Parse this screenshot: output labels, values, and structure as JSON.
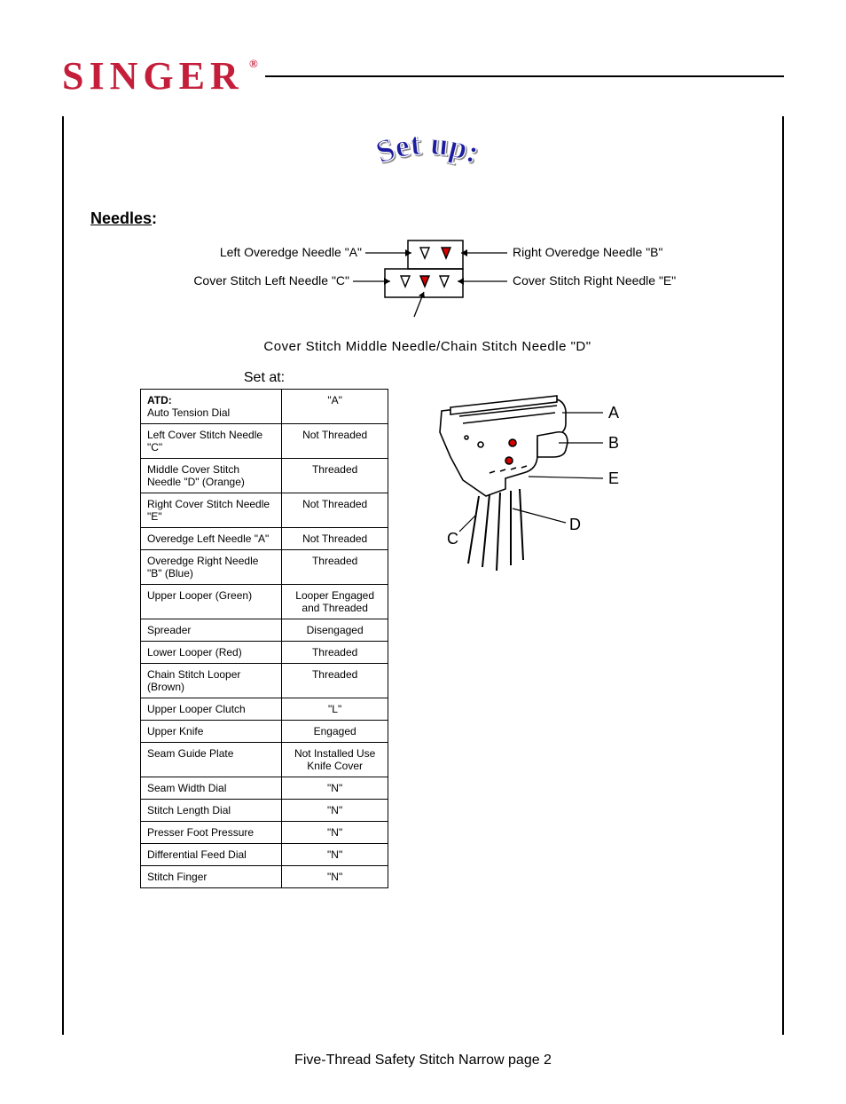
{
  "brand": {
    "name": "SINGER",
    "reg": "®",
    "color": "#c41e3a"
  },
  "setup_title": {
    "text": "Set up:",
    "fill": "#1a1aa0",
    "font_family": "Times New Roman, serif"
  },
  "section": {
    "needles_label": "Needles",
    "colon": ":"
  },
  "needle_diagram": {
    "left_over": "Left Overedge Needle \"A\"",
    "right_over": "Right Overedge Needle \"B\"",
    "cover_left": "Cover Stitch Left Needle \"C\"",
    "cover_right": "Cover Stitch Right Needle \"E\"",
    "caption": "Cover Stitch Middle Needle/Chain Stitch Needle \"D\""
  },
  "setat_label": "Set at:",
  "settings": [
    {
      "label_bold": "ATD:",
      "label": "Auto Tension Dial",
      "value": "\"A\""
    },
    {
      "label": "Left Cover Stitch Needle \"C\"",
      "value": "Not Threaded"
    },
    {
      "label": "Middle Cover Stitch Needle \"D\" (Orange)",
      "value": "Threaded"
    },
    {
      "label": "Right Cover Stitch Needle \"E\"",
      "value": "Not Threaded"
    },
    {
      "label": "Overedge Left Needle \"A\"",
      "value": "Not Threaded"
    },
    {
      "label": "Overedge Right Needle \"B\" (Blue)",
      "value": "Threaded"
    },
    {
      "label": "Upper Looper (Green)",
      "value": "Looper Engaged and Threaded"
    },
    {
      "label": "Spreader",
      "value": "Disengaged"
    },
    {
      "label": "Lower Looper (Red)",
      "value": "Threaded"
    },
    {
      "label": "Chain Stitch Looper (Brown)",
      "value": "Threaded"
    },
    {
      "label": "Upper Looper Clutch",
      "value": "\"L\""
    },
    {
      "label": "Upper Knife",
      "value": "Engaged"
    },
    {
      "label": "Seam Guide Plate",
      "value": "Not Installed Use Knife Cover"
    },
    {
      "label": "Seam Width Dial",
      "value": "\"N\""
    },
    {
      "label": "Stitch Length Dial",
      "value": "\"N\""
    },
    {
      "label": "Presser Foot Pressure",
      "value": "\"N\""
    },
    {
      "label": "Differential Feed Dial",
      "value": "\"N\""
    },
    {
      "label": "Stitch Finger",
      "value": "\"N\""
    }
  ],
  "illus_labels": {
    "A": "A",
    "B": "B",
    "C": "C",
    "D": "D",
    "E": "E"
  },
  "footer": "Five-Thread Safety Stitch Narrow page 2",
  "colors": {
    "black": "#000000",
    "red": "#d40000",
    "white": "#ffffff",
    "title_blue": "#1a1aa0"
  }
}
